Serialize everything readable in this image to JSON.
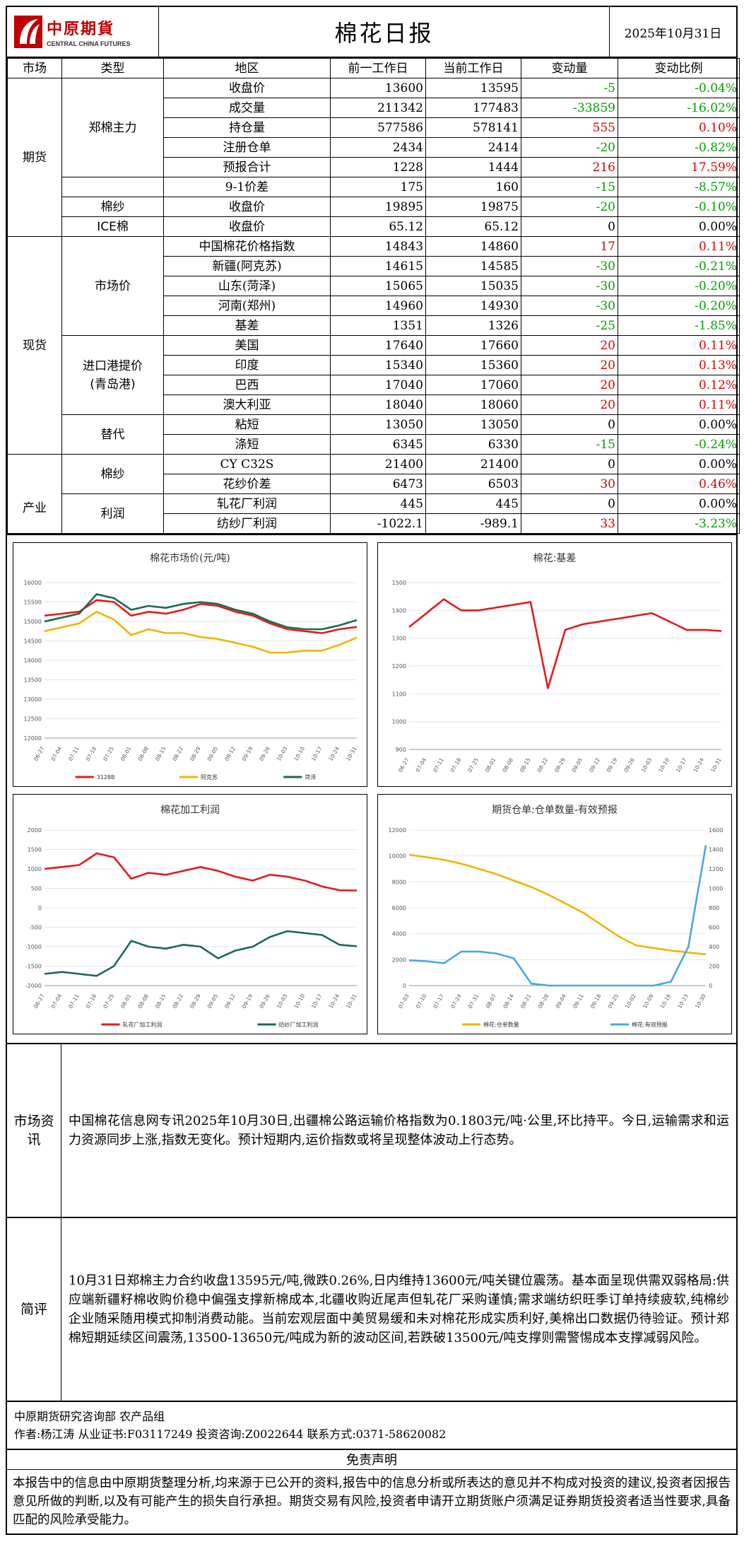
{
  "header": {
    "logo_cn": "中原期貨",
    "logo_en": "CENTRAL CHINA FUTURES",
    "title": "棉花日报",
    "date": "2025年10月31日"
  },
  "table": {
    "headers": [
      "市场",
      "类型",
      "地区",
      "前一工作日",
      "当前工作日",
      "变动量",
      "变动比例"
    ],
    "markets": {
      "futures": "期货",
      "spot": "现货",
      "industry": "产业"
    },
    "types": {
      "zhengmian": "郑棉主力",
      "mianSha": "棉纱",
      "ice": "ICE棉",
      "market_price": "市场价",
      "import1": "进口港提价",
      "import2": "(青岛港)",
      "substitute": "替代",
      "cotton_yarn": "棉纱",
      "profit": "利润"
    },
    "rows": [
      {
        "region": "收盘价",
        "prev": "13600",
        "cur": "13595",
        "chg": "-5",
        "pct": "-0.04%",
        "color": "green"
      },
      {
        "region": "成交量",
        "prev": "211342",
        "cur": "177483",
        "chg": "-33859",
        "pct": "-16.02%",
        "color": "green"
      },
      {
        "region": "持仓量",
        "prev": "577586",
        "cur": "578141",
        "chg": "555",
        "pct": "0.10%",
        "color": "red"
      },
      {
        "region": "注册仓单",
        "prev": "2434",
        "cur": "2414",
        "chg": "-20",
        "pct": "-0.82%",
        "color": "green"
      },
      {
        "region": "预报合计",
        "prev": "1228",
        "cur": "1444",
        "chg": "216",
        "pct": "17.59%",
        "color": "red"
      },
      {
        "region": "9-1价差",
        "prev": "175",
        "cur": "160",
        "chg": "-15",
        "pct": "-8.57%",
        "color": "green"
      },
      {
        "region": "收盘价",
        "prev": "19895",
        "cur": "19875",
        "chg": "-20",
        "pct": "-0.10%",
        "color": "green"
      },
      {
        "region": "收盘价",
        "prev": "65.12",
        "cur": "65.12",
        "chg": "0",
        "pct": "0.00%",
        "color": "blk"
      },
      {
        "region": "中国棉花价格指数",
        "prev": "14843",
        "cur": "14860",
        "chg": "17",
        "pct": "0.11%",
        "color": "red"
      },
      {
        "region": "新疆(阿克苏)",
        "prev": "14615",
        "cur": "14585",
        "chg": "-30",
        "pct": "-0.21%",
        "color": "green"
      },
      {
        "region": "山东(菏泽)",
        "prev": "15065",
        "cur": "15035",
        "chg": "-30",
        "pct": "-0.20%",
        "color": "green"
      },
      {
        "region": "河南(郑州)",
        "prev": "14960",
        "cur": "14930",
        "chg": "-30",
        "pct": "-0.20%",
        "color": "green"
      },
      {
        "region": "基差",
        "prev": "1351",
        "cur": "1326",
        "chg": "-25",
        "pct": "-1.85%",
        "color": "green"
      },
      {
        "region": "美国",
        "prev": "17640",
        "cur": "17660",
        "chg": "20",
        "pct": "0.11%",
        "color": "red"
      },
      {
        "region": "印度",
        "prev": "15340",
        "cur": "15360",
        "chg": "20",
        "pct": "0.13%",
        "color": "red"
      },
      {
        "region": "巴西",
        "prev": "17040",
        "cur": "17060",
        "chg": "20",
        "pct": "0.12%",
        "color": "red"
      },
      {
        "region": "澳大利亚",
        "prev": "18040",
        "cur": "18060",
        "chg": "20",
        "pct": "0.11%",
        "color": "red"
      },
      {
        "region": "粘短",
        "prev": "13050",
        "cur": "13050",
        "chg": "0",
        "pct": "0.00%",
        "color": "blk"
      },
      {
        "region": "涤短",
        "prev": "6345",
        "cur": "6330",
        "chg": "-15",
        "pct": "-0.24%",
        "color": "green"
      },
      {
        "region": "CY C32S",
        "prev": "21400",
        "cur": "21400",
        "chg": "0",
        "pct": "0.00%",
        "color": "blk"
      },
      {
        "region": "花纱价差",
        "prev": "6473",
        "cur": "6503",
        "chg": "30",
        "pct": "0.46%",
        "color": "red"
      },
      {
        "region": "轧花厂利润",
        "prev": "445",
        "cur": "445",
        "chg": "0",
        "pct": "0.00%",
        "color": "blk"
      },
      {
        "region": "纺纱厂利润",
        "prev": "-1022.1",
        "cur": "-989.1",
        "chg": "33",
        "pct": "-3.23%",
        "color": "red",
        "pct_color": "green"
      }
    ]
  },
  "colors": {
    "red": "#e00000",
    "green": "#00a000",
    "line_red": "#e41a1c",
    "line_gold": "#f0b400",
    "line_teal": "#1b6b4e",
    "line_blue": "#4aa8e0"
  },
  "chart_data": [
    {
      "type": "line",
      "title": "棉花市场价(元/吨)",
      "ylim": [
        12000,
        16000
      ],
      "yticks": [
        12000,
        12500,
        13000,
        13500,
        14000,
        14500,
        15000,
        15500,
        16000
      ],
      "x": [
        "06-27",
        "07-04",
        "07-11",
        "07-18",
        "07-25",
        "08-01",
        "08-08",
        "08-15",
        "08-22",
        "08-29",
        "09-05",
        "09-12",
        "09-19",
        "09-26",
        "10-03",
        "10-10",
        "10-17",
        "10-24",
        "10-31"
      ],
      "series": [
        {
          "name": "3128B",
          "color": "#e41a1c",
          "values": [
            15150,
            15200,
            15250,
            15550,
            15500,
            15150,
            15250,
            15200,
            15300,
            15450,
            15400,
            15250,
            15150,
            14950,
            14800,
            14750,
            14700,
            14800,
            14860
          ]
        },
        {
          "name": "阿克苏",
          "color": "#f0b400",
          "values": [
            14750,
            14850,
            14950,
            15250,
            15050,
            14650,
            14800,
            14700,
            14700,
            14600,
            14550,
            14450,
            14350,
            14200,
            14200,
            14250,
            14250,
            14400,
            14585
          ]
        },
        {
          "name": "菏泽",
          "color": "#1b6b4e",
          "values": [
            15000,
            15100,
            15200,
            15700,
            15600,
            15300,
            15400,
            15350,
            15450,
            15500,
            15450,
            15300,
            15200,
            15000,
            14850,
            14800,
            14800,
            14900,
            15035
          ]
        }
      ]
    },
    {
      "type": "line",
      "title": "棉花:基差",
      "ylim": [
        900,
        1500
      ],
      "yticks": [
        900,
        1000,
        1100,
        1200,
        1300,
        1400,
        1500
      ],
      "x": [
        "06-27",
        "07-04",
        "07-11",
        "07-18",
        "07-25",
        "08-01",
        "08-08",
        "08-15",
        "08-22",
        "08-29",
        "09-05",
        "09-12",
        "09-19",
        "09-26",
        "10-03",
        "10-10",
        "10-17",
        "10-24",
        "10-31"
      ],
      "series": [
        {
          "name": "",
          "color": "#e41a1c",
          "values": [
            1340,
            1390,
            1440,
            1400,
            1400,
            1410,
            1420,
            1430,
            1120,
            1330,
            1350,
            1360,
            1370,
            1380,
            1390,
            1360,
            1330,
            1330,
            1326
          ]
        }
      ]
    },
    {
      "type": "line",
      "title": "棉花加工利润",
      "ylim": [
        -2000,
        2000
      ],
      "yticks": [
        -2000,
        -1500,
        -1000,
        -500,
        0,
        500,
        1000,
        1500,
        2000
      ],
      "x": [
        "06-27",
        "07-04",
        "07-11",
        "07-18",
        "07-25",
        "08-01",
        "08-08",
        "08-15",
        "08-22",
        "08-29",
        "09-05",
        "09-12",
        "09-19",
        "09-26",
        "10-03",
        "10-10",
        "10-17",
        "10-24",
        "10-31"
      ],
      "series": [
        {
          "name": "轧花厂加工利润",
          "color": "#e41a1c",
          "values": [
            1000,
            1050,
            1100,
            1400,
            1300,
            750,
            900,
            850,
            950,
            1050,
            950,
            800,
            700,
            850,
            800,
            700,
            550,
            450,
            445
          ]
        },
        {
          "name": "纺纱厂加工利润",
          "color": "#1b6b4e",
          "values": [
            -1700,
            -1650,
            -1700,
            -1750,
            -1500,
            -850,
            -1000,
            -1050,
            -950,
            -1000,
            -1300,
            -1100,
            -1000,
            -750,
            -600,
            -650,
            -700,
            -950,
            -989
          ]
        }
      ]
    },
    {
      "type": "line",
      "title": "期货仓单:仓单数量-有效预报",
      "ylim_left": [
        0,
        12000
      ],
      "yticks_left": [
        0,
        2000,
        4000,
        6000,
        8000,
        10000,
        12000
      ],
      "ylim_right": [
        0,
        1600
      ],
      "yticks_right": [
        0,
        200,
        400,
        600,
        800,
        1000,
        1200,
        1400,
        1600
      ],
      "x": [
        "07-03",
        "07-10",
        "07-17",
        "07-24",
        "07-31",
        "08-07",
        "08-14",
        "08-21",
        "08-28",
        "09-04",
        "09-11",
        "09-18",
        "09-25",
        "10-02",
        "10-09",
        "10-16",
        "10-23",
        "10-30"
      ],
      "series": [
        {
          "name": "棉花:仓单数量",
          "axis": "left",
          "color": "#f0b400",
          "values": [
            10100,
            9900,
            9700,
            9400,
            9000,
            8600,
            8100,
            7600,
            7000,
            6300,
            5600,
            4700,
            3800,
            3100,
            2900,
            2700,
            2550,
            2414
          ]
        },
        {
          "name": "棉花:有效预报",
          "axis": "right",
          "color": "#4aa8e0",
          "values": [
            260,
            250,
            230,
            350,
            350,
            330,
            280,
            20,
            0,
            0,
            0,
            0,
            0,
            0,
            0,
            40,
            400,
            1444
          ]
        }
      ]
    }
  ],
  "sections": {
    "info_label": "市场资讯",
    "info_text": "中国棉花信息网专讯2025年10月30日,出疆棉公路运输价格指数为0.1803元/吨·公里,环比持平。今日,运输需求和运力资源同步上涨,指数无变化。预计短期内,运价指数或将呈现整体波动上行态势。",
    "comment_label": "简评",
    "comment_text": "10月31日郑棉主力合约收盘13595元/吨,微跌0.26%,日内维持13600元/吨关键位震荡。基本面呈现供需双弱格局:供应端新疆籽棉收购价稳中偏强支撑新棉成本,北疆收购近尾声但轧花厂采购谨慎;需求端纺织旺季订单持续疲软,纯棉纱企业随采随用模式抑制消费动能。当前宏观层面中美贸易缓和未对棉花形成实质利好,美棉出口数据仍待验证。预计郑棉短期延续区间震荡,13500-13650元/吨成为新的波动区间,若跌破13500元/吨支撑则需警惕成本支撑减弱风险。"
  },
  "footer": {
    "line1": "中原期货研究咨询部 农产品组",
    "line2": "作者:杨江涛 从业证书:F03117249 投资咨询:Z0022644 联系方式:0371-58620082"
  },
  "disclaimer": {
    "title": "免责声明",
    "text": "本报告中的信息由中原期货整理分析,均来源于已公开的资料,报告中的信息分析或所表达的意见并不构成对投资的建议,投资者因报告意见所做的判断,以及有可能产生的损失自行承担。期货交易有风险,投资者申请开立期货账户须满足证券期货投资者适当性要求,具备匹配的风险承受能力。"
  }
}
